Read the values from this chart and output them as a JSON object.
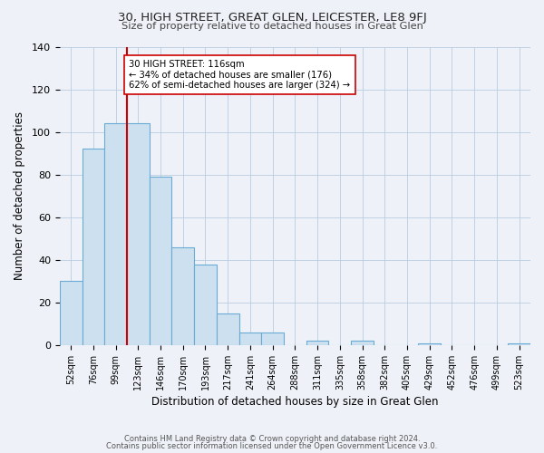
{
  "title": "30, HIGH STREET, GREAT GLEN, LEICESTER, LE8 9FJ",
  "subtitle": "Size of property relative to detached houses in Great Glen",
  "xlabel": "Distribution of detached houses by size in Great Glen",
  "ylabel": "Number of detached properties",
  "bar_color": "#cce0f0",
  "bar_edge_color": "#6aaad4",
  "background_color": "#eef2f8",
  "plot_bg_color": "#eef2f8",
  "categories": [
    "52sqm",
    "76sqm",
    "99sqm",
    "123sqm",
    "146sqm",
    "170sqm",
    "193sqm",
    "217sqm",
    "241sqm",
    "264sqm",
    "288sqm",
    "311sqm",
    "335sqm",
    "358sqm",
    "382sqm",
    "405sqm",
    "429sqm",
    "452sqm",
    "476sqm",
    "499sqm",
    "523sqm"
  ],
  "values": [
    30,
    92,
    104,
    104,
    79,
    46,
    38,
    15,
    6,
    6,
    0,
    2,
    0,
    2,
    0,
    0,
    1,
    0,
    0,
    0,
    1
  ],
  "vline_x": 2.5,
  "vline_color": "#cc0000",
  "annotation_text": "30 HIGH STREET: 116sqm\n← 34% of detached houses are smaller (176)\n62% of semi-detached houses are larger (324) →",
  "annotation_box_edgecolor": "#cc0000",
  "annotation_box_facecolor": "#ffffff",
  "ylim": [
    0,
    140
  ],
  "yticks": [
    0,
    20,
    40,
    60,
    80,
    100,
    120,
    140
  ],
  "footer1": "Contains HM Land Registry data © Crown copyright and database right 2024.",
  "footer2": "Contains public sector information licensed under the Open Government Licence v3.0."
}
